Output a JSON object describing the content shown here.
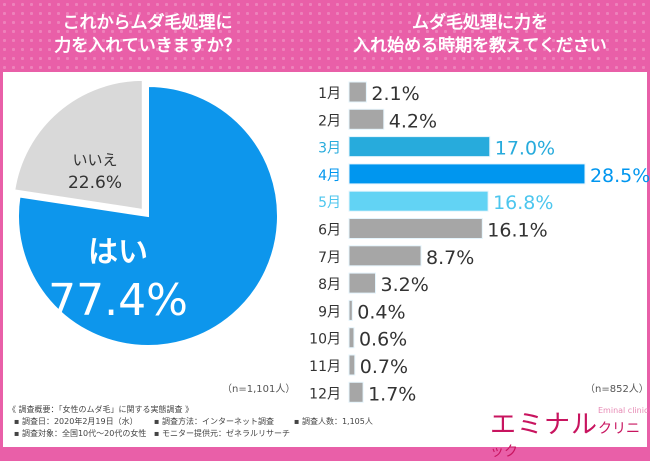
{
  "header": {
    "left_title": [
      "これからムダ毛処理に",
      "力を入れていきますか？"
    ],
    "right_title": [
      "ムダ毛処理に力を",
      "入れ始める時期を教えてください"
    ]
  },
  "chart_data": [
    {
      "type": "pie",
      "title": "これからムダ毛処理に力を入れていきますか？",
      "slices": [
        {
          "label": "はい",
          "value": 77.4,
          "display": "77.4%",
          "color": "#0d96ec"
        },
        {
          "label": "いいえ",
          "value": 22.6,
          "display": "22.6%",
          "color": "#d9d9d9"
        }
      ],
      "note": "（n=1,101人）"
    },
    {
      "type": "bar",
      "orientation": "horizontal",
      "title": "ムダ毛処理に力を入れ始める時期を教えてください",
      "categories": [
        "1月",
        "2月",
        "3月",
        "4月",
        "5月",
        "6月",
        "7月",
        "8月",
        "9月",
        "10月",
        "11月",
        "12月"
      ],
      "values": [
        2.1,
        4.2,
        17.0,
        28.5,
        16.8,
        16.1,
        8.7,
        3.2,
        0.4,
        0.6,
        0.7,
        1.7
      ],
      "unit": "%",
      "colors": [
        "#a6a6a6",
        "#a6a6a6",
        "#27abdc",
        "#0096ef",
        "#62d3f4",
        "#a6a6a6",
        "#a6a6a6",
        "#a6a6a6",
        "#a6a6a6",
        "#a6a6a6",
        "#a6a6a6",
        "#a6a6a6"
      ],
      "label_colors": [
        "#333",
        "#333",
        "#27abdc",
        "#0096ef",
        "#4cc6ee",
        "#333",
        "#333",
        "#333",
        "#333",
        "#333",
        "#333",
        "#333"
      ],
      "note": "（n=852人）"
    }
  ],
  "survey": {
    "title": "《 調査概要：「女性のムダ毛」に関する実態調査 》",
    "date": "▪ 調査日：2020年2月19日（水）",
    "method": "▪ 調査方法：インターネット調査",
    "count": "▪ 調査人数：1,105人",
    "target": "▪ 調査対象：全国10代〜20代の女性",
    "provider": "▪ モニター提供元：ゼネラルリサーチ"
  },
  "logo": {
    "main": "エミナル",
    "sub": "クリニック",
    "en": "Eminal clinic♡"
  }
}
